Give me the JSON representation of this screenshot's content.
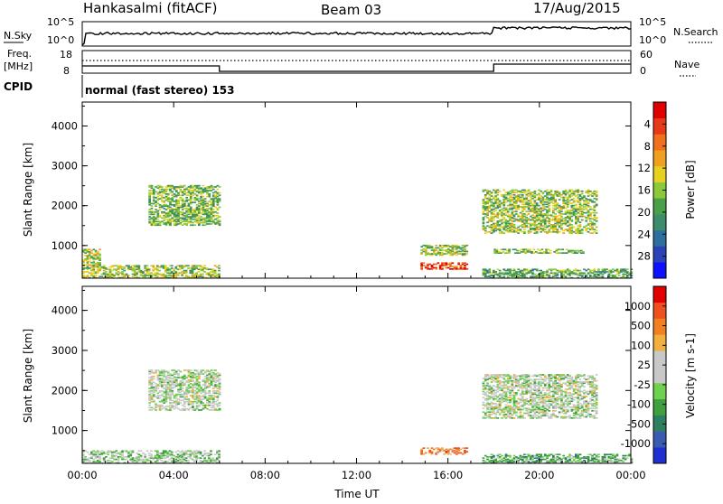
{
  "header": {
    "station": "Hankasalmi (fitACF)",
    "beam": "Beam 03",
    "date": "17/Aug/2015"
  },
  "noise_panel": {
    "left_label": "N.Sky",
    "right_label": "N.Search",
    "left_ticks": [
      "10^5",
      "10^0"
    ],
    "right_ticks": [
      "10^5",
      "10^0"
    ]
  },
  "freq_panel": {
    "left_label_top": "Freq.",
    "left_label_bottom": "[MHz]",
    "left_ticks": [
      "18",
      "8"
    ],
    "right_label": "Nave",
    "right_ticks": [
      "60",
      "0"
    ]
  },
  "cpid": {
    "label": "CPID",
    "mode": "normal (fast stereo) 153"
  },
  "chart_data": [
    {
      "type": "heatmap",
      "name": "power",
      "ylabel": "Slant Range [km]",
      "xlabel": "",
      "ylim": [
        180,
        4600
      ],
      "yticks": [
        "1000",
        "2000",
        "3000",
        "4000"
      ],
      "xlim_hours": [
        0,
        24
      ],
      "colorbar": {
        "label": "Power [dB]",
        "ticks": [
          "4",
          "8",
          "12",
          "16",
          "20",
          "24",
          "28"
        ],
        "colors": [
          "#1010ff",
          "#2a44b8",
          "#2f6fa0",
          "#3d8c6b",
          "#4aa048",
          "#8cc83a",
          "#e8d020",
          "#f0a020",
          "#f07020",
          "#e83a18",
          "#e00000"
        ]
      },
      "regions": [
        {
          "t0": 0.0,
          "t1": 6.0,
          "r0": 180,
          "r1": 500,
          "level": 0.5
        },
        {
          "t0": 0.0,
          "t1": 0.8,
          "r0": 500,
          "r1": 900,
          "level": 0.55
        },
        {
          "t0": 2.9,
          "t1": 6.0,
          "r0": 1500,
          "r1": 2500,
          "level": 0.45
        },
        {
          "t0": 14.8,
          "t1": 16.8,
          "r0": 400,
          "r1": 560,
          "level": 0.85
        },
        {
          "t0": 14.8,
          "t1": 16.8,
          "r0": 750,
          "r1": 1000,
          "level": 0.5
        },
        {
          "t0": 17.5,
          "t1": 22.5,
          "r0": 1300,
          "r1": 2400,
          "level": 0.5
        },
        {
          "t0": 18.0,
          "t1": 22.0,
          "r0": 800,
          "r1": 900,
          "level": 0.45
        },
        {
          "t0": 17.5,
          "t1": 24.0,
          "r0": 180,
          "r1": 400,
          "level": 0.4
        }
      ]
    },
    {
      "type": "heatmap",
      "name": "velocity",
      "ylabel": "Slant Range [km]",
      "xlabel": "Time UT",
      "ylim": [
        180,
        4600
      ],
      "yticks": [
        "1000",
        "2000",
        "3000",
        "4000"
      ],
      "xticks": [
        "00:00",
        "04:00",
        "08:00",
        "12:00",
        "16:00",
        "20:00",
        "00:00"
      ],
      "xlim_hours": [
        0,
        24
      ],
      "colorbar": {
        "label": "Velocity [m s-1]",
        "ticks": [
          "1000",
          "500",
          "100",
          "25",
          "-25",
          "-100",
          "-500",
          "-1000"
        ],
        "colors": [
          "#2030d0",
          "#3a5cb0",
          "#2f8060",
          "#40a040",
          "#70d050",
          "#c8c8c8",
          "#c8c8c8",
          "#f0b040",
          "#f08020",
          "#f05020",
          "#e00000"
        ]
      },
      "regions": [
        {
          "t0": 0.0,
          "t1": 6.0,
          "r0": 180,
          "r1": 500,
          "level": 0.45
        },
        {
          "t0": 2.9,
          "t1": 6.0,
          "r0": 1500,
          "r1": 2500,
          "level": 0.5
        },
        {
          "t0": 14.8,
          "t1": 16.8,
          "r0": 400,
          "r1": 560,
          "level": 0.75
        },
        {
          "t0": 17.5,
          "t1": 22.5,
          "r0": 1300,
          "r1": 2400,
          "level": 0.5
        },
        {
          "t0": 17.5,
          "t1": 24.0,
          "r0": 180,
          "r1": 400,
          "level": 0.35
        }
      ]
    }
  ]
}
